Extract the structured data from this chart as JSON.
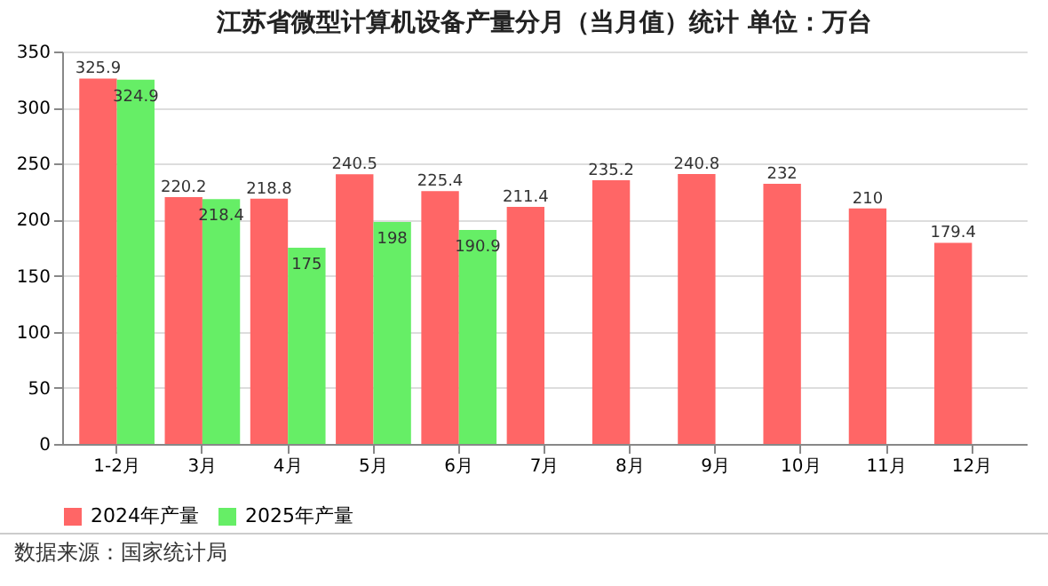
{
  "chart_data": {
    "type": "bar",
    "title": "江苏省微型计算机设备产量分月（当月值）统计  单位：万台",
    "categories": [
      "1-2月",
      "3月",
      "4月",
      "5月",
      "6月",
      "7月",
      "8月",
      "9月",
      "10月",
      "11月",
      "12月"
    ],
    "series": [
      {
        "name": "2024年产量",
        "color": "#ff6666",
        "values": [
          325.9,
          220.2,
          218.8,
          240.5,
          225.4,
          211.4,
          235.2,
          240.8,
          232,
          210,
          179.4
        ]
      },
      {
        "name": "2025年产量",
        "color": "#66ee66",
        "values": [
          324.9,
          218.4,
          175,
          198,
          190.9,
          null,
          null,
          null,
          null,
          null,
          null
        ]
      }
    ],
    "ylim": [
      0,
      350
    ],
    "yticks": [
      0,
      50,
      100,
      150,
      200,
      250,
      300,
      350
    ],
    "grid": "y",
    "legend": "bottom",
    "data_labels": true,
    "annotations": [
      "数据来源：国家统计局"
    ]
  }
}
